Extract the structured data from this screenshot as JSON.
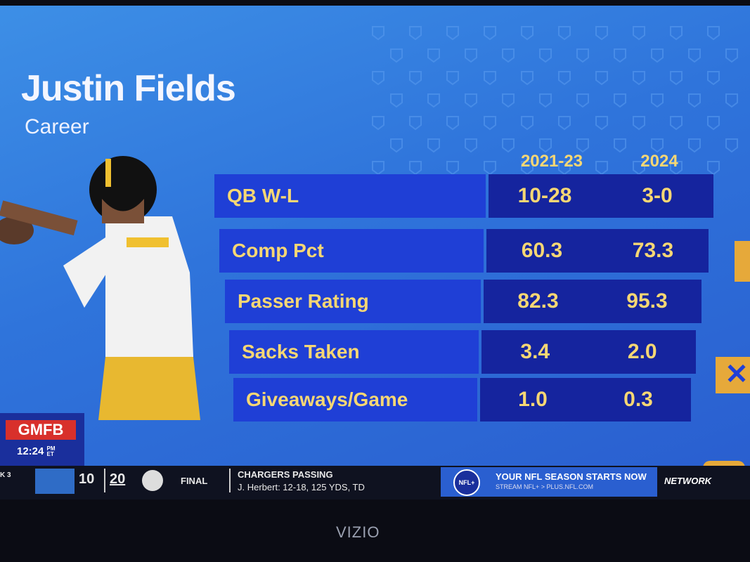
{
  "header": {
    "title": "Justin Fields",
    "subtitle": "Career"
  },
  "table": {
    "columns": [
      "2021-23",
      "2024"
    ],
    "rows": [
      [
        "QB W-L",
        "10-28",
        "3-0"
      ],
      [
        "Comp Pct",
        "60.3",
        "73.3"
      ],
      [
        "Passer Rating",
        "82.3",
        "95.3"
      ],
      [
        "Sacks Taken",
        "3.4",
        "2.0"
      ],
      [
        "Giveaways/Game",
        "1.0",
        "0.3"
      ]
    ]
  },
  "show": {
    "logo": "GMFB",
    "time": "12:24",
    "ampm": "PM",
    "zone": "ET"
  },
  "ticker": {
    "week": "K 3",
    "away_score": "10",
    "home_score": "20",
    "status": "FINAL",
    "headline": "CHARGERS PASSING",
    "detail": "J. Herbert: 12-18, 125 YDS, TD",
    "ad_logo": "NFL+",
    "ad_title": "YOUR NFL SEASON STARTS NOW",
    "ad_sub": "STREAM NFL+ > PLUS.NFL.COM",
    "network": "NETWORK"
  },
  "tv": {
    "brand": "VIZIO"
  }
}
